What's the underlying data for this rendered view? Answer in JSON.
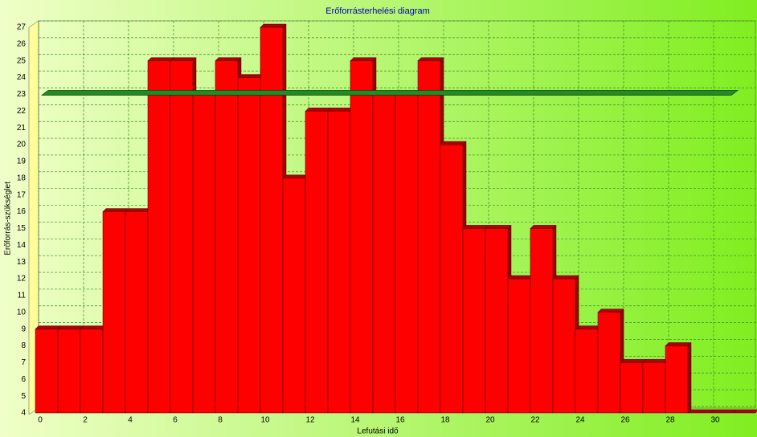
{
  "chart_data": {
    "type": "bar",
    "title": "Erőforrásterhelési diagram",
    "x_label": "Lefutási idő",
    "y_label": "Erőforrás-szükséglet",
    "x": [
      0,
      1,
      2,
      3,
      4,
      5,
      6,
      7,
      8,
      9,
      10,
      11,
      12,
      13,
      14,
      15,
      16,
      17,
      18,
      19,
      20,
      21,
      22,
      23,
      24,
      25,
      26,
      27,
      28,
      29,
      30,
      31
    ],
    "values": [
      9,
      9,
      9,
      16,
      16,
      25,
      25,
      23,
      25,
      24,
      27,
      18,
      22,
      22,
      25,
      23,
      23,
      25,
      20,
      15,
      15,
      12,
      15,
      12,
      9,
      10,
      7,
      7,
      8,
      4,
      4,
      4
    ],
    "color": "#ff0000",
    "xlim": [
      0,
      32
    ],
    "xticks": [
      0,
      2,
      4,
      6,
      8,
      10,
      12,
      14,
      16,
      18,
      20,
      22,
      24,
      26,
      28,
      30
    ],
    "ylim": [
      4,
      27
    ],
    "yticks": [
      4,
      5,
      6,
      7,
      8,
      9,
      10,
      11,
      12,
      13,
      14,
      15,
      16,
      17,
      18,
      19,
      20,
      21,
      22,
      23,
      24,
      25,
      26,
      27
    ],
    "limit_line": {
      "value": 23,
      "color": "#228b22"
    },
    "grid": true
  }
}
